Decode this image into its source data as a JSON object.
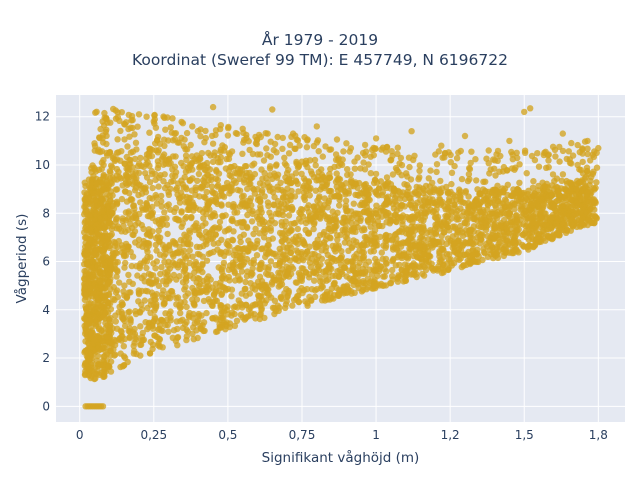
{
  "chart_data": {
    "type": "scatter",
    "title": "År 1979 - 2019",
    "subtitle": "Koordinat (Sweref 99 TM): E 457749, N 6196722",
    "xlabel": "Signifikant våghöjd (m)",
    "ylabel": "Vågperiod (s)",
    "xlim": [
      -0.08,
      1.84
    ],
    "ylim": [
      -0.65,
      12.9
    ],
    "x_ticks": [
      0,
      0.25,
      0.5,
      0.75,
      1,
      1.25,
      1.5,
      1.75
    ],
    "x_tick_labels": [
      "0",
      "0,25",
      "0,5",
      "0,75",
      "1",
      "1,2",
      "1,5",
      "1,8"
    ],
    "y_ticks": [
      0,
      2,
      4,
      6,
      8,
      10,
      12
    ],
    "y_tick_labels": [
      "0",
      "2",
      "4",
      "6",
      "8",
      "10",
      "12"
    ],
    "grid": true,
    "marker_color": "#d4a420",
    "background_color": "#e5e9f2",
    "envelope": {
      "x": [
        0.02,
        0.05,
        0.1,
        0.25,
        0.5,
        0.75,
        1.0,
        1.25,
        1.5,
        1.7
      ],
      "y_lower": [
        1.2,
        1.1,
        1.4,
        2.2,
        3.2,
        4.1,
        4.9,
        5.6,
        6.4,
        7.5
      ],
      "y_upper": [
        9.0,
        10.6,
        10.8,
        10.6,
        10.0,
        9.6,
        9.3,
        9.0,
        9.0,
        9.4
      ]
    },
    "zero_cluster": {
      "x_range": [
        0.02,
        0.085
      ],
      "y": 0
    },
    "scattered_points": [
      {
        "x": 0.2,
        "y": 12.1
      },
      {
        "x": 0.25,
        "y": 11.8
      },
      {
        "x": 0.45,
        "y": 12.4
      },
      {
        "x": 0.65,
        "y": 12.3
      },
      {
        "x": 0.32,
        "y": 11.3
      },
      {
        "x": 0.55,
        "y": 11.5
      },
      {
        "x": 0.8,
        "y": 11.6
      },
      {
        "x": 0.72,
        "y": 11.3
      },
      {
        "x": 1.52,
        "y": 12.35
      },
      {
        "x": 1.5,
        "y": 12.2
      },
      {
        "x": 1.63,
        "y": 11.3
      },
      {
        "x": 1.3,
        "y": 11.2
      },
      {
        "x": 1.12,
        "y": 11.4
      },
      {
        "x": 1.0,
        "y": 11.1
      },
      {
        "x": 1.45,
        "y": 11.0
      },
      {
        "x": 1.75,
        "y": 10.7
      },
      {
        "x": 0.9,
        "y": 10.9
      },
      {
        "x": 1.22,
        "y": 10.8
      },
      {
        "x": 0.15,
        "y": 11.7
      },
      {
        "x": 0.05,
        "y": 10.9
      },
      {
        "x": 0.38,
        "y": 11.6
      },
      {
        "x": 1.38,
        "y": 10.6
      },
      {
        "x": 1.58,
        "y": 10.4
      },
      {
        "x": 1.68,
        "y": 10.0
      }
    ]
  }
}
